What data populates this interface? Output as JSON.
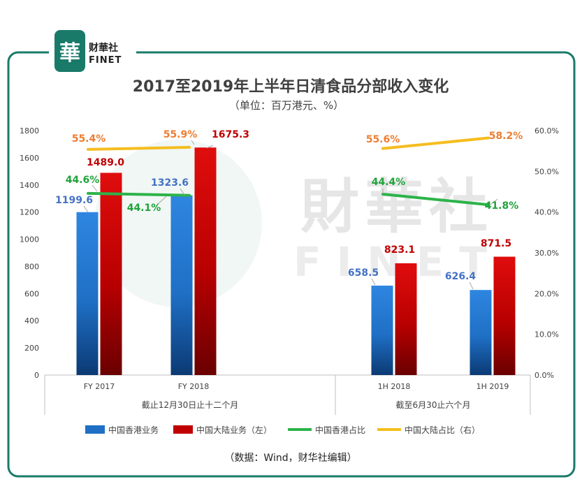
{
  "brand": {
    "logo_glyph": "華",
    "name_cn": "财華社",
    "name_en": "FINET",
    "accent_color": "#1a7a6a"
  },
  "watermark": {
    "text_cn": "財華社",
    "text_en": "FINET"
  },
  "chart_data": {
    "type": "bar",
    "title": "2017至2019年上半年日清食品分部收入变化",
    "subtitle": "（单位：百万港元、%）",
    "categories": [
      "FY 2017",
      "FY 2018",
      "1H 2018",
      "1H 2019"
    ],
    "groups": [
      {
        "label": "截止12月30日止十二个月",
        "categories": [
          "FY 2017",
          "FY 2018"
        ]
      },
      {
        "label": "截至6月30止六个月",
        "categories": [
          "1H 2018",
          "1H 2019"
        ]
      }
    ],
    "left_axis": {
      "min": 0,
      "max": 1800,
      "step": 200,
      "ticks": [
        "0",
        "200",
        "400",
        "600",
        "800",
        "1000",
        "1200",
        "1400",
        "1600",
        "1800"
      ]
    },
    "right_axis": {
      "min": 0,
      "max": 60,
      "step": 10,
      "ticks": [
        "0.0%",
        "10.0%",
        "20.0%",
        "30.0%",
        "40.0%",
        "50.0%",
        "60.0%"
      ]
    },
    "series": [
      {
        "name": "中国香港业务",
        "kind": "bar",
        "axis": "left",
        "color": "#1f6fc5",
        "values": [
          1199.6,
          1323.6,
          658.5,
          626.4
        ],
        "labels": [
          "1199.6",
          "1323.6",
          "658.5",
          "626.4"
        ]
      },
      {
        "name": "中国大陆业务（左）",
        "kind": "bar",
        "axis": "left",
        "color": "#c00000",
        "values": [
          1489.0,
          1675.3,
          823.1,
          871.5
        ],
        "labels": [
          "1489.0",
          "1675.3",
          "823.1",
          "871.5"
        ]
      },
      {
        "name": "中国香港占比",
        "kind": "line",
        "axis": "right",
        "color": "#2db34a",
        "values": [
          44.6,
          44.1,
          44.4,
          41.8
        ],
        "labels": [
          "44.6%",
          "44.1%",
          "44.4%",
          "41.8%"
        ]
      },
      {
        "name": "中国大陆占比（右）",
        "kind": "line",
        "axis": "right",
        "color": "#f5bd1f",
        "values": [
          55.4,
          55.9,
          55.6,
          58.2
        ],
        "labels": [
          "55.4%",
          "55.9%",
          "55.6%",
          "58.2%"
        ]
      }
    ],
    "legend_position": "bottom",
    "grid": false,
    "source": "（数据：Wind，财华社编辑）"
  }
}
